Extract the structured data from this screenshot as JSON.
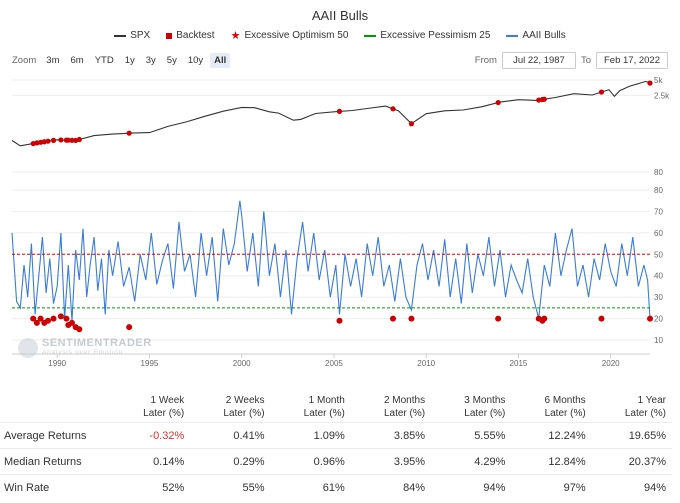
{
  "chart_data": {
    "type": "line",
    "title": "AAII Bulls",
    "legend": [
      {
        "name": "SPX",
        "symbol": "line",
        "color": "#333333"
      },
      {
        "name": "Backtest",
        "symbol": "square",
        "color": "#cc0000"
      },
      {
        "name": "Excessive Optimism 50",
        "symbol": "star-line",
        "color": "#e00000"
      },
      {
        "name": "Excessive Pessimism 25",
        "symbol": "star-line",
        "color": "#009900"
      },
      {
        "name": "AAII Bulls",
        "symbol": "line",
        "color": "#3a7dd4"
      }
    ],
    "legend_position": "top-center",
    "x_range": [
      1987.55,
      2022.13
    ],
    "x_ticks": [
      "1990",
      "1995",
      "2000",
      "2005",
      "2010",
      "2015",
      "2020"
    ],
    "x_tick_values": [
      1990,
      1995,
      2000,
      2005,
      2010,
      2015,
      2020
    ],
    "spx_panel": {
      "scale": "log",
      "y_ticks": [
        "80",
        "2.5k",
        "5k"
      ],
      "y_tick_values": [
        80,
        2500,
        5000
      ],
      "series": {
        "name": "SPX",
        "x": [
          1987.55,
          1988.0,
          1989.0,
          1990.0,
          1991.0,
          1992.0,
          1993.0,
          1994.0,
          1995.0,
          1996.0,
          1997.0,
          1998.0,
          1999.0,
          2000.0,
          2000.7,
          2001.5,
          2002.0,
          2002.8,
          2003.2,
          2004.0,
          2005.0,
          2006.0,
          2007.0,
          2007.8,
          2008.5,
          2009.2,
          2010.0,
          2011.0,
          2012.0,
          2013.0,
          2014.0,
          2015.0,
          2016.0,
          2017.0,
          2018.0,
          2019.0,
          2019.9,
          2020.2,
          2020.5,
          2021.0,
          2021.9,
          2022.13
        ],
        "values": [
          330,
          260,
          300,
          340,
          330,
          410,
          440,
          460,
          470,
          620,
          760,
          980,
          1230,
          1460,
          1440,
          1200,
          1130,
          820,
          850,
          1110,
          1200,
          1270,
          1420,
          1550,
          1250,
          700,
          1100,
          1250,
          1300,
          1500,
          1850,
          2060,
          2000,
          2280,
          2700,
          2550,
          3230,
          2400,
          3100,
          3750,
          4700,
          4350
        ]
      }
    },
    "bulls_panel": {
      "y_ticks": [
        "10",
        "20",
        "30",
        "40",
        "50",
        "60",
        "70",
        "80"
      ],
      "y_tick_values": [
        10,
        20,
        30,
        40,
        50,
        60,
        70,
        80
      ],
      "y_range": [
        10,
        80
      ],
      "excessive_optimism": 50,
      "excessive_pessimism": 25,
      "series": {
        "name": "AAII Bulls",
        "x": [
          1987.55,
          1987.8,
          1988.0,
          1988.2,
          1988.4,
          1988.6,
          1988.8,
          1989.0,
          1989.2,
          1989.4,
          1989.6,
          1989.8,
          1990.0,
          1990.2,
          1990.4,
          1990.6,
          1990.8,
          1991.0,
          1991.2,
          1991.4,
          1991.6,
          1991.8,
          1992.0,
          1992.2,
          1992.4,
          1992.6,
          1992.8,
          1993.0,
          1993.3,
          1993.6,
          1993.9,
          1994.2,
          1994.5,
          1994.8,
          1995.1,
          1995.4,
          1995.7,
          1996.0,
          1996.3,
          1996.6,
          1996.9,
          1997.2,
          1997.5,
          1997.8,
          1998.1,
          1998.4,
          1998.7,
          1999.0,
          1999.3,
          1999.6,
          1999.9,
          2000.0,
          2000.3,
          2000.6,
          2000.9,
          2001.2,
          2001.5,
          2001.8,
          2002.1,
          2002.4,
          2002.7,
          2003.0,
          2003.3,
          2003.6,
          2003.9,
          2004.2,
          2004.5,
          2004.8,
          2005.1,
          2005.3,
          2005.6,
          2005.9,
          2006.2,
          2006.5,
          2006.8,
          2007.1,
          2007.4,
          2007.7,
          2008.0,
          2008.3,
          2008.6,
          2008.9,
          2009.2,
          2009.5,
          2009.8,
          2010.1,
          2010.4,
          2010.7,
          2011.0,
          2011.3,
          2011.6,
          2011.9,
          2012.2,
          2012.5,
          2012.8,
          2013.1,
          2013.4,
          2013.7,
          2014.0,
          2014.3,
          2014.6,
          2014.9,
          2015.2,
          2015.5,
          2015.8,
          2016.1,
          2016.4,
          2016.7,
          2017.0,
          2017.3,
          2017.6,
          2017.9,
          2018.2,
          2018.5,
          2018.8,
          2019.1,
          2019.4,
          2019.7,
          2020.0,
          2020.3,
          2020.6,
          2020.9,
          2021.2,
          2021.5,
          2021.8,
          2022.0,
          2022.13
        ],
        "values": [
          60,
          28,
          25,
          45,
          30,
          55,
          22,
          40,
          58,
          32,
          48,
          27,
          35,
          60,
          20,
          45,
          19,
          52,
          38,
          62,
          30,
          46,
          58,
          33,
          48,
          22,
          52,
          40,
          56,
          35,
          44,
          28,
          50,
          38,
          60,
          36,
          47,
          55,
          34,
          65,
          42,
          50,
          30,
          60,
          40,
          58,
          28,
          62,
          45,
          55,
          75,
          68,
          42,
          60,
          35,
          70,
          40,
          55,
          30,
          52,
          22,
          48,
          65,
          42,
          60,
          38,
          52,
          30,
          45,
          22,
          50,
          35,
          48,
          30,
          55,
          40,
          58,
          35,
          45,
          28,
          48,
          30,
          24,
          45,
          55,
          38,
          52,
          35,
          57,
          30,
          48,
          27,
          55,
          32,
          50,
          40,
          58,
          35,
          52,
          30,
          45,
          38,
          32,
          48,
          30,
          20,
          45,
          35,
          60,
          40,
          52,
          62,
          35,
          45,
          30,
          48,
          38,
          55,
          42,
          35,
          55,
          40,
          58,
          35,
          45,
          38,
          20
        ]
      },
      "backtest_x": [
        1988.7,
        1988.9,
        1989.1,
        1989.3,
        1989.5,
        1989.8,
        1990.2,
        1990.5,
        1990.6,
        1990.8,
        1991.0,
        1991.2,
        1993.9,
        2005.3,
        2008.2,
        2009.2,
        2013.9,
        2016.1,
        2016.3,
        2016.4,
        2019.5,
        2022.13
      ],
      "backtest_y": [
        20,
        18,
        20,
        18,
        19,
        20,
        21,
        20,
        17,
        18,
        16,
        15,
        16,
        19,
        20,
        20,
        20,
        20,
        19,
        20,
        20,
        20
      ]
    }
  },
  "zoom": {
    "label": "Zoom",
    "buttons": [
      "3m",
      "6m",
      "YTD",
      "1y",
      "3y",
      "5y",
      "10y",
      "All"
    ],
    "active": "All"
  },
  "range": {
    "from_label": "From",
    "from_value": "Jul 22, 1987",
    "to_label": "To",
    "to_value": "Feb 17, 2022"
  },
  "watermark": {
    "name": "SENTIMENTRADER",
    "tagline": "Analysis over Emotion"
  },
  "stats_table": {
    "headers": [
      {
        "line1": "1 Week",
        "line2": "Later (%)"
      },
      {
        "line1": "2 Weeks",
        "line2": "Later (%)"
      },
      {
        "line1": "1 Month",
        "line2": "Later (%)"
      },
      {
        "line1": "2 Months",
        "line2": "Later (%)"
      },
      {
        "line1": "3 Months",
        "line2": "Later (%)"
      },
      {
        "line1": "6 Months",
        "line2": "Later (%)"
      },
      {
        "line1": "1 Year",
        "line2": "Later (%)"
      }
    ],
    "rows": [
      {
        "label": "Average Returns",
        "values": [
          "-0.32%",
          "0.41%",
          "1.09%",
          "3.85%",
          "5.55%",
          "12.24%",
          "19.65%"
        ]
      },
      {
        "label": "Median Returns",
        "values": [
          "0.14%",
          "0.29%",
          "0.96%",
          "3.95%",
          "4.29%",
          "12.84%",
          "20.37%"
        ]
      },
      {
        "label": "Win Rate",
        "values": [
          "52%",
          "55%",
          "61%",
          "84%",
          "94%",
          "97%",
          "94%"
        ]
      }
    ]
  }
}
